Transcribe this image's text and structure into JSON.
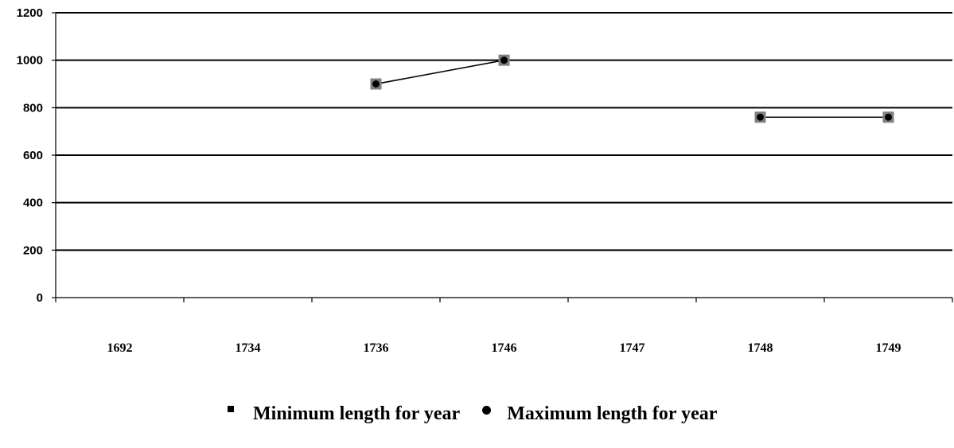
{
  "chart_data": {
    "type": "line",
    "categories": [
      "1692",
      "1734",
      "1736",
      "1746",
      "1747",
      "1748",
      "1749"
    ],
    "ylim": [
      0,
      1200
    ],
    "yticks": [
      0,
      200,
      400,
      600,
      800,
      1000,
      1200
    ],
    "grid": true,
    "legend_position": "bottom",
    "series": [
      {
        "name": "Minimum length for year",
        "marker": "square",
        "values": [
          null,
          null,
          900,
          1000,
          null,
          760,
          760
        ]
      },
      {
        "name": "Maximum length for year",
        "marker": "circle",
        "values": [
          null,
          null,
          900,
          1000,
          null,
          760,
          760
        ]
      }
    ],
    "colors": {
      "line": "#000000",
      "marker_square": "#808080",
      "marker_circle": "#000000"
    }
  },
  "legend": {
    "min_label": "Minimum length for year",
    "max_label": "Maximum length for year"
  }
}
